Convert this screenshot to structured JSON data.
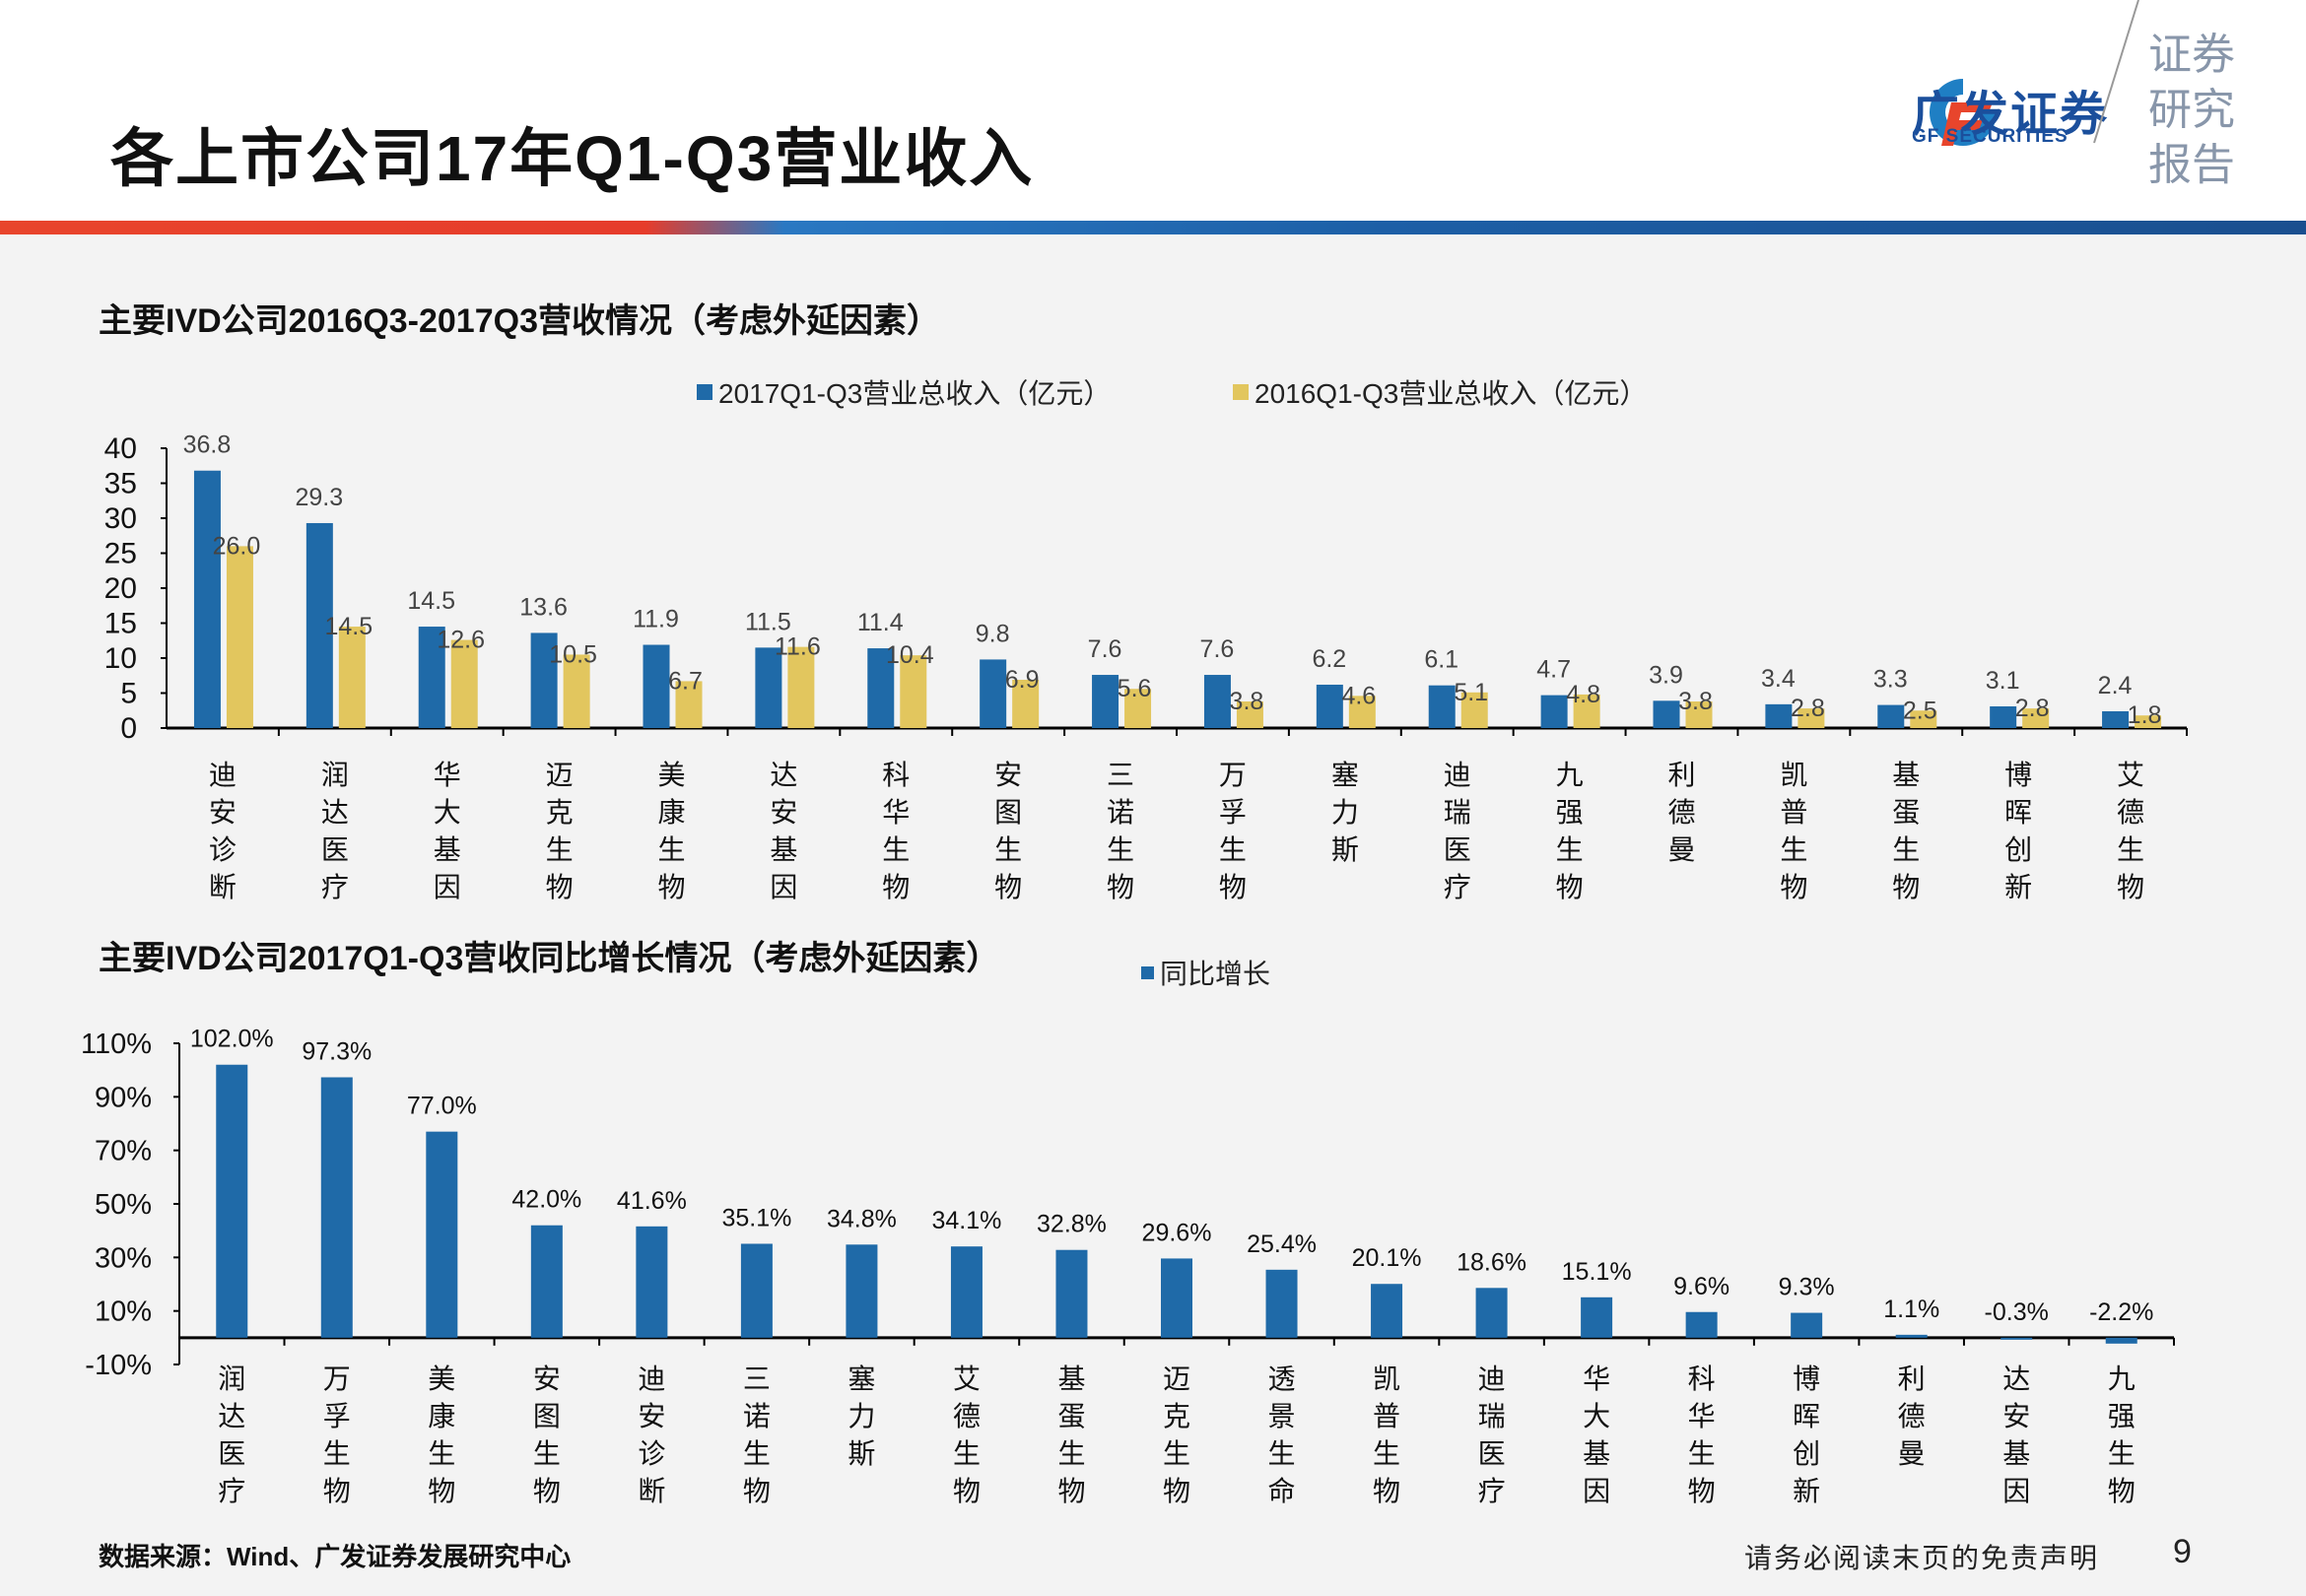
{
  "header": {
    "title": "各上市公司17年Q1-Q3营业收入",
    "logo_cn": "广发证券",
    "logo_en": "GF SECURITIES",
    "report_label": "证券研究报告"
  },
  "colors": {
    "blue": "#1f6aa8",
    "yellow": "#e2c65e"
  },
  "chart_data": [
    {
      "type": "bar",
      "title": "主要IVD公司2016Q3-2017Q3营收情况（考虑外延因素）",
      "categories": [
        "迪安诊断",
        "润达医疗",
        "华大基因",
        "迈克生物",
        "美康生物",
        "达安基因",
        "科华生物",
        "安图生物",
        "三诺生物",
        "万孚生物",
        "塞力斯",
        "迪瑞医疗",
        "九强生物",
        "利德曼",
        "凯普生物",
        "基蛋生物",
        "博晖创新",
        "艾德生物"
      ],
      "series": [
        {
          "name": "2017Q1-Q3营业总收入（亿元）",
          "values": [
            36.8,
            29.3,
            14.5,
            13.6,
            11.9,
            11.5,
            11.4,
            9.8,
            7.6,
            7.6,
            6.2,
            6.1,
            4.7,
            3.9,
            3.4,
            3.3,
            3.1,
            2.4
          ]
        },
        {
          "name": "2016Q1-Q3营业总收入（亿元）",
          "values": [
            26.0,
            14.5,
            12.6,
            10.5,
            6.7,
            11.6,
            10.4,
            6.9,
            5.6,
            3.8,
            4.6,
            5.1,
            4.8,
            3.8,
            2.8,
            2.5,
            2.8,
            1.8
          ]
        }
      ],
      "yticks": [
        "0",
        "5",
        "10",
        "15",
        "20",
        "25",
        "30",
        "35",
        "40"
      ],
      "ylim": [
        0,
        40
      ],
      "legend": "top"
    },
    {
      "type": "bar",
      "title": "主要IVD公司2017Q1-Q3营收同比增长情况（考虑外延因素）",
      "categories": [
        "润达医疗",
        "万孚生物",
        "美康生物",
        "安图生物",
        "迪安诊断",
        "三诺生物",
        "塞力斯",
        "艾德生物",
        "基蛋生物",
        "迈克生物",
        "透景生命",
        "凯普生物",
        "迪瑞医疗",
        "华大基因",
        "科华生物",
        "博晖创新",
        "利德曼",
        "达安基因",
        "九强生物"
      ],
      "series": [
        {
          "name": "同比增长",
          "values": [
            102.0,
            97.3,
            77.0,
            42.0,
            41.6,
            35.1,
            34.8,
            34.1,
            32.8,
            29.6,
            25.4,
            20.1,
            18.6,
            15.1,
            9.6,
            9.3,
            1.1,
            -0.3,
            -2.2
          ],
          "labels": [
            "102.0%",
            "97.3%",
            "77.0%",
            "42.0%",
            "41.6%",
            "35.1%",
            "34.8%",
            "34.1%",
            "32.8%",
            "29.6%",
            "25.4%",
            "20.1%",
            "18.6%",
            "15.1%",
            "9.6%",
            "9.3%",
            "1.1%",
            "-0.3%",
            "-2.2%"
          ]
        }
      ],
      "yticks": [
        "-10%",
        "10%",
        "30%",
        "50%",
        "70%",
        "90%",
        "110%"
      ],
      "ylim": [
        -10,
        110
      ],
      "legend": "top-right of title"
    }
  ],
  "footer": {
    "source": "数据来源：Wind、广发证券发展研究中心",
    "disclaimer": "请务必阅读末页的免责声明",
    "page": "9"
  }
}
